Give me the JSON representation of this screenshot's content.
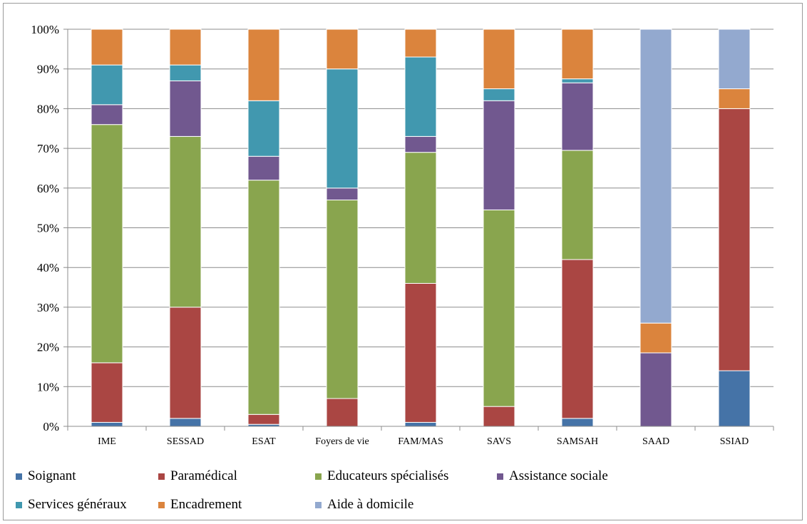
{
  "chart_data": {
    "type": "bar",
    "stacked": true,
    "percent": true,
    "title": "",
    "xlabel": "",
    "ylabel": "",
    "ylim": [
      0,
      100
    ],
    "yticks": [
      "0%",
      "10%",
      "20%",
      "30%",
      "40%",
      "50%",
      "60%",
      "70%",
      "80%",
      "90%",
      "100%"
    ],
    "grid": true,
    "legend_position": "bottom",
    "categories": [
      "IME",
      "SESSAD",
      "ESAT",
      "Foyers de vie",
      "FAM/MAS",
      "SAVS",
      "SAMSAH",
      "SAAD",
      "SSIAD"
    ],
    "series": [
      {
        "name": "Soignant",
        "color": "#4573a7",
        "values": [
          1,
          2,
          0.5,
          0,
          1,
          0,
          2,
          0,
          14
        ]
      },
      {
        "name": "Paramédical",
        "color": "#aa4643",
        "values": [
          15,
          28,
          2.5,
          7,
          35,
          5,
          40,
          0,
          66
        ]
      },
      {
        "name": "Educateurs spécialisés",
        "color": "#89a54e",
        "values": [
          60,
          43,
          59,
          50,
          33,
          49.5,
          27.5,
          0,
          0
        ]
      },
      {
        "name": "Assistance sociale",
        "color": "#71588f",
        "values": [
          5,
          14,
          6,
          3,
          4,
          27.5,
          17,
          18.5,
          0
        ]
      },
      {
        "name": "Services généraux",
        "color": "#4198af",
        "values": [
          10,
          4,
          14,
          30,
          20,
          3,
          1,
          0,
          0
        ]
      },
      {
        "name": "Encadrement",
        "color": "#db843d",
        "values": [
          9,
          9,
          18,
          10,
          7,
          15,
          12.5,
          7.5,
          5
        ]
      },
      {
        "name": "Aide à domicile",
        "color": "#93a9cf",
        "values": [
          0,
          0,
          0,
          0,
          0,
          0,
          0,
          74,
          15
        ]
      }
    ],
    "legend_rows": [
      [
        0,
        1,
        2,
        3
      ],
      [
        4,
        5,
        6
      ]
    ]
  }
}
